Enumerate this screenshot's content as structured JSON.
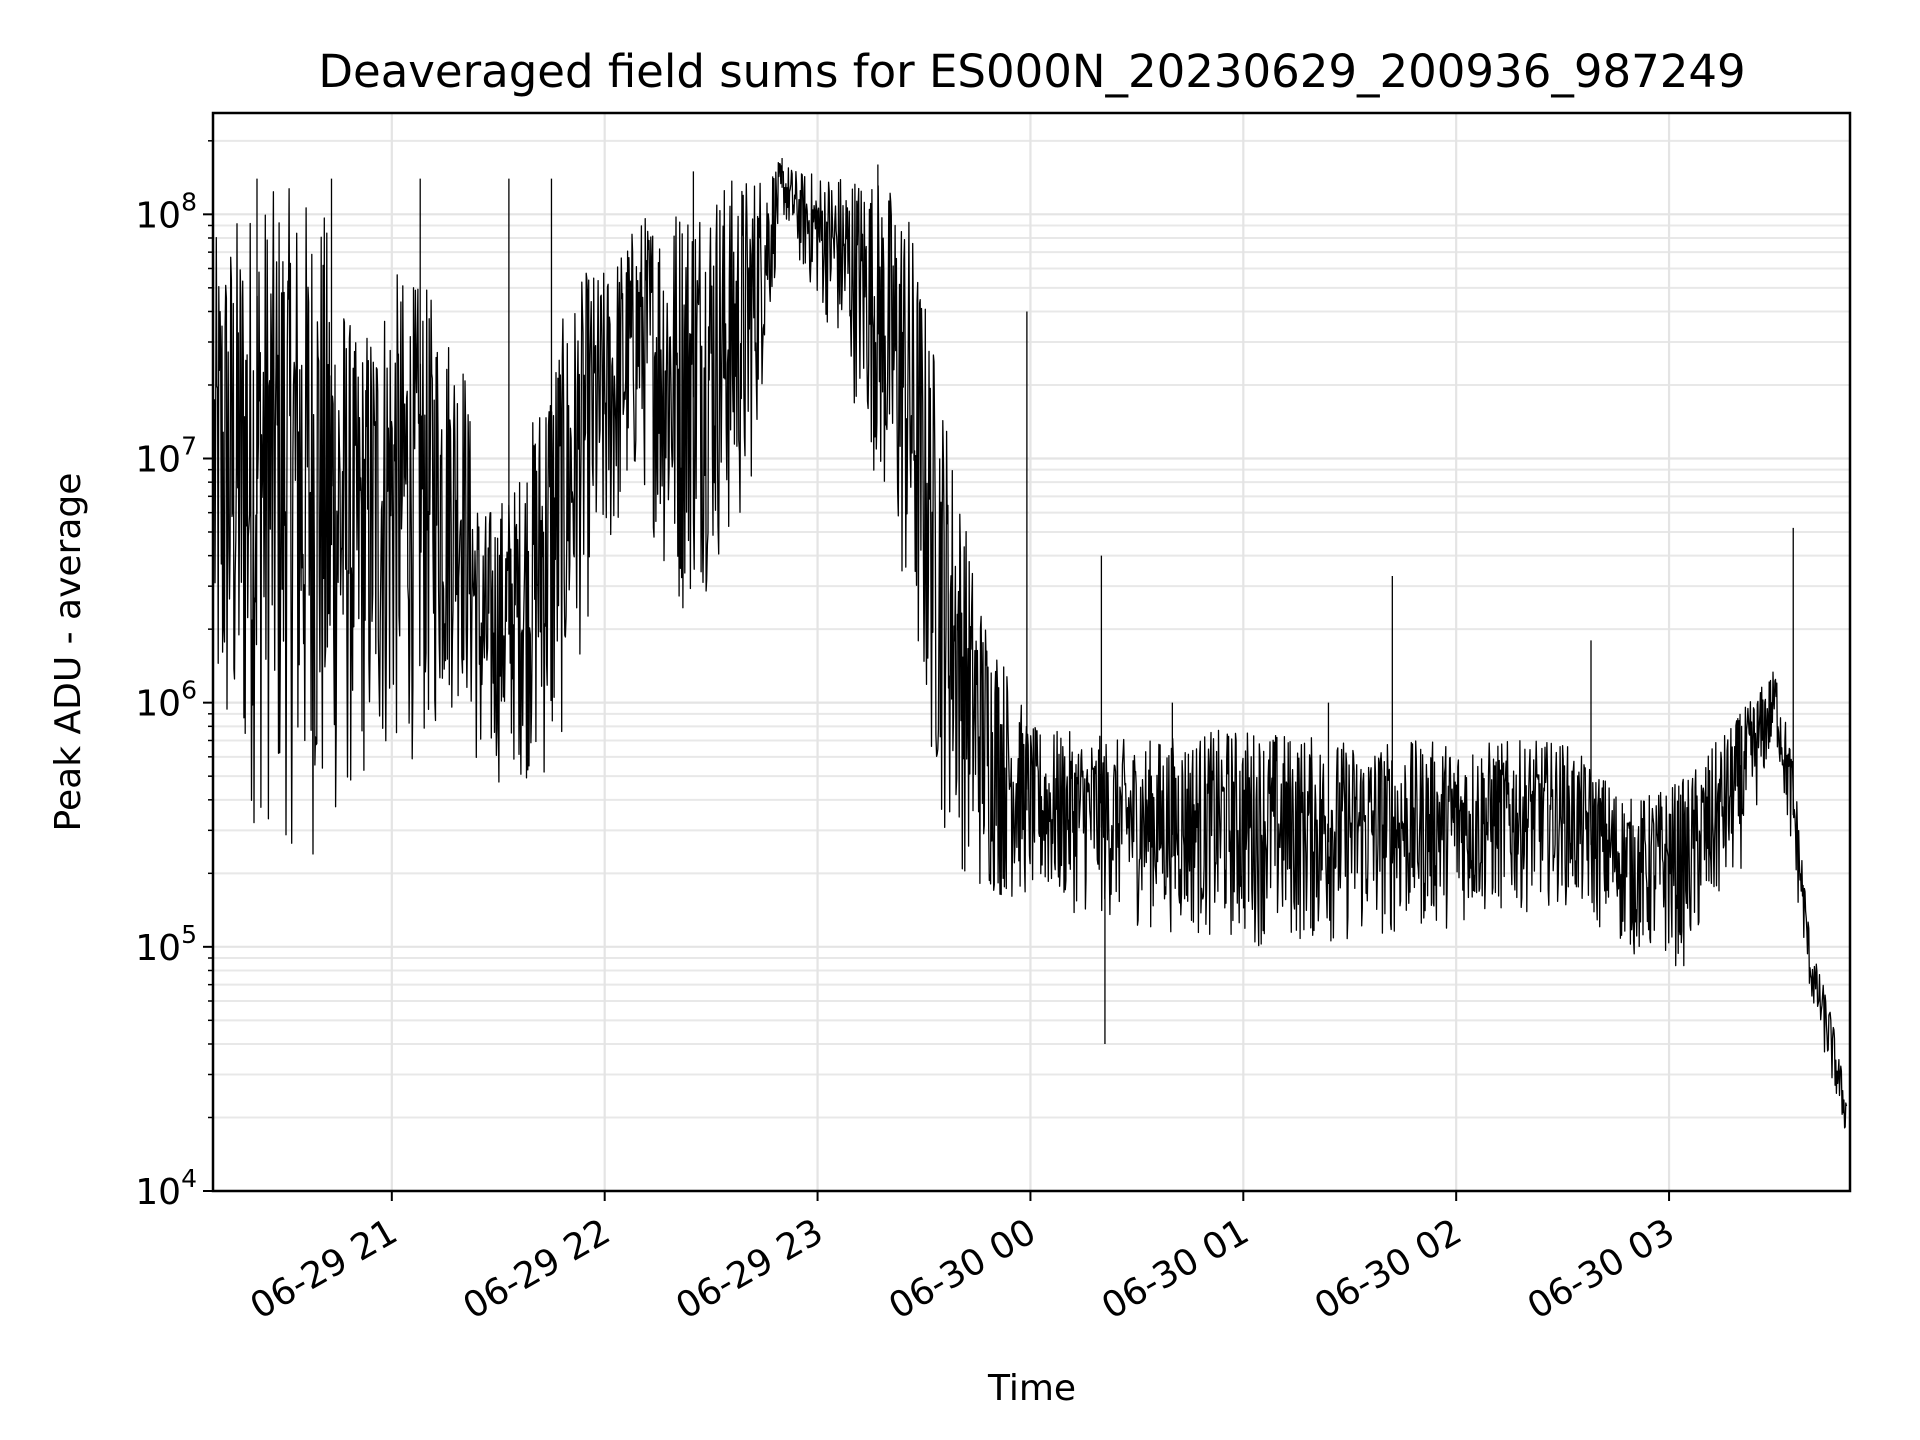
{
  "chart_data": {
    "type": "line",
    "title": "Deaveraged field sums for ES000N_20230629_200936_987249",
    "xlabel": "Time",
    "ylabel": "Peak ADU - average",
    "yscale": "log",
    "ylim": [
      10000,
      260000000
    ],
    "xlim": [
      "2023-06-29 20:09:36",
      "2023-06-30 03:51:00"
    ],
    "grid": true,
    "line_color": "#000000",
    "x_ticks": [
      "2023-06-29 21:00",
      "2023-06-29 22:00",
      "2023-06-29 23:00",
      "2023-06-30 00:00",
      "2023-06-30 01:00",
      "2023-06-30 02:00",
      "2023-06-30 03:00"
    ],
    "x_tick_labels": [
      "06-29 21",
      "06-29 22",
      "06-29 23",
      "06-30 00",
      "06-30 01",
      "06-30 02",
      "06-30 03"
    ],
    "y_ticks": [
      10000,
      100000,
      1000000,
      10000000,
      100000000
    ],
    "y_tick_labels": [
      {
        "base": "10",
        "exp": "4"
      },
      {
        "base": "10",
        "exp": "5"
      },
      {
        "base": "10",
        "exp": "6"
      },
      {
        "base": "10",
        "exp": "7"
      },
      {
        "base": "10",
        "exp": "8"
      }
    ],
    "envelope": [
      {
        "t": "2023-06-29 20:10",
        "low": 400000,
        "high": 80000000
      },
      {
        "t": "2023-06-29 20:20",
        "low": 300000,
        "high": 120000000
      },
      {
        "t": "2023-06-29 20:30",
        "low": 250000,
        "high": 130000000
      },
      {
        "t": "2023-06-29 20:40",
        "low": 200000,
        "high": 120000000
      },
      {
        "t": "2023-06-29 20:50",
        "low": 400000,
        "high": 30000000
      },
      {
        "t": "2023-06-29 21:00",
        "low": 500000,
        "high": 60000000
      },
      {
        "t": "2023-06-29 21:10",
        "low": 600000,
        "high": 50000000
      },
      {
        "t": "2023-06-29 21:20",
        "low": 1000000,
        "high": 30000000
      },
      {
        "t": "2023-06-29 21:25",
        "low": 400000,
        "high": 6000000
      },
      {
        "t": "2023-06-29 21:35",
        "low": 500000,
        "high": 8000000
      },
      {
        "t": "2023-06-29 21:45",
        "low": 400000,
        "high": 30000000
      },
      {
        "t": "2023-06-29 21:55",
        "low": 2000000,
        "high": 60000000
      },
      {
        "t": "2023-06-29 22:00",
        "low": 3000000,
        "high": 60000000
      },
      {
        "t": "2023-06-29 22:10",
        "low": 8000000,
        "high": 100000000
      },
      {
        "t": "2023-06-29 22:20",
        "low": 2000000,
        "high": 120000000
      },
      {
        "t": "2023-06-29 22:30",
        "low": 3000000,
        "high": 140000000
      },
      {
        "t": "2023-06-29 22:40",
        "low": 5000000,
        "high": 150000000
      },
      {
        "t": "2023-06-29 22:50",
        "low": 100000000,
        "high": 165000000
      },
      {
        "t": "2023-06-29 22:55",
        "low": 60000000,
        "high": 150000000
      },
      {
        "t": "2023-06-29 23:05",
        "low": 30000000,
        "high": 150000000
      },
      {
        "t": "2023-06-29 23:15",
        "low": 10000000,
        "high": 150000000
      },
      {
        "t": "2023-06-29 23:25",
        "low": 2000000,
        "high": 120000000
      },
      {
        "t": "2023-06-29 23:35",
        "low": 300000,
        "high": 20000000
      },
      {
        "t": "2023-06-29 23:45",
        "low": 150000,
        "high": 3000000
      },
      {
        "t": "2023-06-30 00:00",
        "low": 150000,
        "high": 800000
      },
      {
        "t": "2023-06-30 00:30",
        "low": 120000,
        "high": 700000
      },
      {
        "t": "2023-06-30 01:00",
        "low": 100000,
        "high": 800000
      },
      {
        "t": "2023-06-30 01:30",
        "low": 100000,
        "high": 700000
      },
      {
        "t": "2023-06-30 02:00",
        "low": 120000,
        "high": 700000
      },
      {
        "t": "2023-06-30 02:30",
        "low": 150000,
        "high": 700000
      },
      {
        "t": "2023-06-30 02:50",
        "low": 90000,
        "high": 400000
      },
      {
        "t": "2023-06-30 03:05",
        "low": 80000,
        "high": 500000
      },
      {
        "t": "2023-06-30 03:20",
        "low": 200000,
        "high": 900000
      },
      {
        "t": "2023-06-30 03:30",
        "low": 700000,
        "high": 1400000
      },
      {
        "t": "2023-06-30 03:35",
        "low": 200000,
        "high": 600000
      },
      {
        "t": "2023-06-30 03:40",
        "low": 60000,
        "high": 100000
      },
      {
        "t": "2023-06-30 03:45",
        "low": 30000,
        "high": 60000
      },
      {
        "t": "2023-06-30 03:50",
        "low": 16000,
        "high": 25000
      }
    ],
    "spikes": [
      {
        "t": "2023-06-29 20:22",
        "value": 140000000
      },
      {
        "t": "2023-06-29 20:43",
        "value": 140000000
      },
      {
        "t": "2023-06-29 21:08",
        "value": 140000000
      },
      {
        "t": "2023-06-29 21:33",
        "value": 140000000
      },
      {
        "t": "2023-06-29 21:45",
        "value": 140000000
      },
      {
        "t": "2023-06-29 22:25",
        "value": 150000000
      },
      {
        "t": "2023-06-29 22:50",
        "value": 170000000
      },
      {
        "t": "2023-06-29 23:17",
        "value": 160000000
      },
      {
        "t": "2023-06-29 23:59",
        "value": 40000000
      },
      {
        "t": "2023-06-30 00:21",
        "value": 40000
      },
      {
        "t": "2023-06-30 00:20",
        "value": 4000000
      },
      {
        "t": "2023-06-30 00:40",
        "value": 1000000
      },
      {
        "t": "2023-06-30 01:24",
        "value": 1000000
      },
      {
        "t": "2023-06-30 01:42",
        "value": 3300000
      },
      {
        "t": "2023-06-30 02:38",
        "value": 1800000
      },
      {
        "t": "2023-06-30 03:20",
        "value": 900000
      },
      {
        "t": "2023-06-30 03:35",
        "value": 5200000
      }
    ]
  }
}
